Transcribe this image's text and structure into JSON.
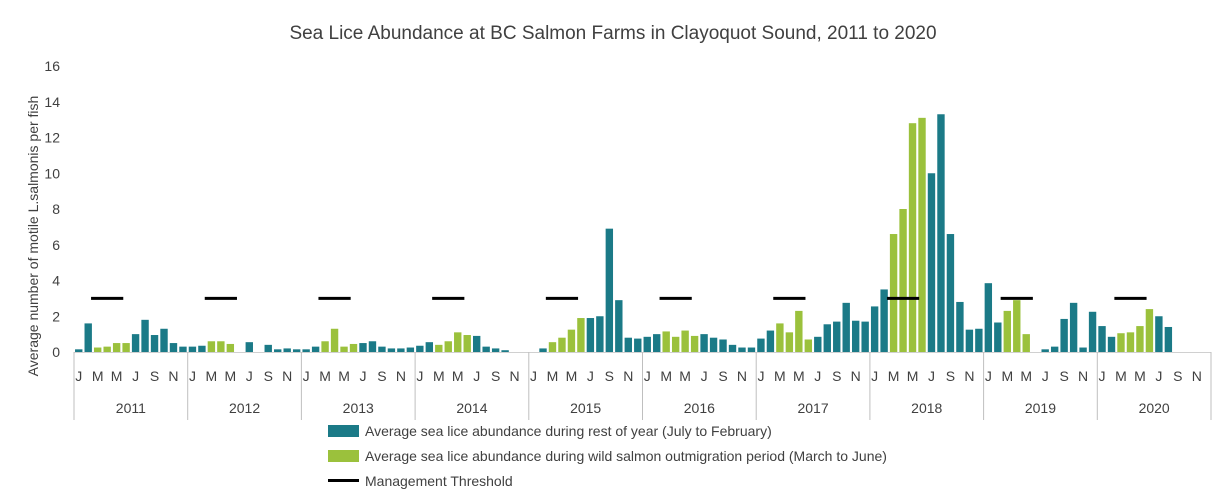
{
  "chart_data": {
    "type": "bar",
    "title": "Sea Lice Abundance at BC Salmon Farms in Clayoquot Sound, 2011 to 2020",
    "ylabel": "Average number of motile L.salmonis per fish",
    "xlabel": "",
    "ylim": [
      0,
      16
    ],
    "yticks": [
      0,
      2,
      4,
      6,
      8,
      10,
      12,
      14,
      16
    ],
    "grid": false,
    "legend_position": "bottom",
    "month_tick_labels": [
      "J",
      "M",
      "M",
      "J",
      "S",
      "N"
    ],
    "years": [
      "2011",
      "2012",
      "2013",
      "2014",
      "2015",
      "2016",
      "2017",
      "2018",
      "2019",
      "2020"
    ],
    "months": [
      "J",
      "F",
      "M",
      "A",
      "M",
      "J",
      "J",
      "A",
      "S",
      "O",
      "N",
      "D"
    ],
    "values": [
      [
        0.15,
        1.6,
        0.25,
        0.3,
        0.5,
        0.5,
        1.0,
        1.8,
        0.95,
        1.3,
        0.5,
        0.3
      ],
      [
        0.3,
        0.35,
        0.6,
        0.6,
        0.45,
        null,
        0.55,
        null,
        0.4,
        0.15,
        0.2,
        0.15
      ],
      [
        0.15,
        0.3,
        0.6,
        1.3,
        0.3,
        0.45,
        0.5,
        0.6,
        0.3,
        0.2,
        0.2,
        0.25
      ],
      [
        0.35,
        0.55,
        0.4,
        0.6,
        1.1,
        0.95,
        0.9,
        0.3,
        0.2,
        0.1,
        null,
        null
      ],
      [
        null,
        0.2,
        0.55,
        0.8,
        1.25,
        1.9,
        1.9,
        2.0,
        6.9,
        2.9,
        0.8,
        0.75
      ],
      [
        0.85,
        1.0,
        1.15,
        0.85,
        1.2,
        0.9,
        1.0,
        0.8,
        0.7,
        0.4,
        0.25,
        0.25
      ],
      [
        0.75,
        1.2,
        1.6,
        1.1,
        2.3,
        0.7,
        0.85,
        1.55,
        1.7,
        2.75,
        1.75,
        1.7
      ],
      [
        2.55,
        3.5,
        6.6,
        8.0,
        12.8,
        13.1,
        10.0,
        13.3,
        6.6,
        2.8,
        1.25,
        1.3
      ],
      [
        3.85,
        1.65,
        2.3,
        2.9,
        1.0,
        null,
        0.15,
        0.3,
        1.85,
        2.75,
        0.25,
        2.25
      ],
      [
        1.45,
        0.85,
        1.05,
        1.1,
        1.45,
        2.4,
        2.0,
        1.4,
        null,
        null,
        null,
        null
      ]
    ],
    "series": [
      {
        "name": "Average sea lice abundance during rest of year (July to February)",
        "color": "#1b7a87"
      },
      {
        "name": "Average sea lice abundance during wild salmon outmigration period (March to June)",
        "color": "#9bc13c"
      },
      {
        "name": "Management Threshold",
        "color": "#000000",
        "value": 3,
        "months": "March to June"
      }
    ]
  }
}
